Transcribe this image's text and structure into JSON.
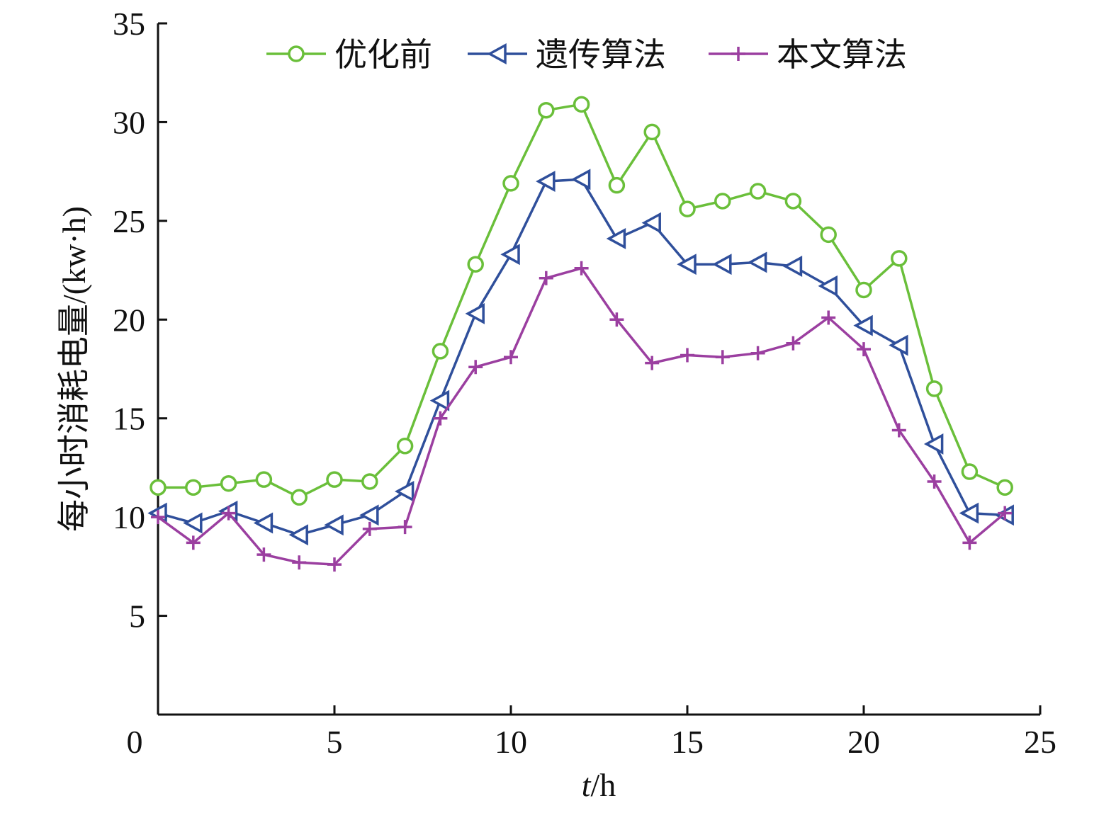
{
  "chart_data": {
    "type": "line",
    "title": "",
    "xlabel": "t/h",
    "xlabel_parts": {
      "var": "t",
      "unit": "/h"
    },
    "ylabel": "每小时消耗电量/(kw·h)",
    "xlim": [
      0,
      25
    ],
    "ylim": [
      0,
      35
    ],
    "xticks": [
      0,
      5,
      10,
      15,
      20,
      25
    ],
    "xtick_labels": [
      "0",
      "5",
      "10",
      "15",
      "20",
      "25"
    ],
    "yticks": [
      5,
      10,
      15,
      20,
      25,
      30,
      35
    ],
    "ytick_labels": [
      "5",
      "10",
      "15",
      "20",
      "25",
      "30",
      "35"
    ],
    "grid": false,
    "legend_position": "top-center",
    "x": [
      0,
      1,
      2,
      3,
      4,
      5,
      6,
      7,
      8,
      9,
      10,
      11,
      12,
      13,
      14,
      15,
      16,
      17,
      18,
      19,
      20,
      21,
      22,
      23,
      24
    ],
    "series": [
      {
        "name": "优化前",
        "color": "#6abf3a",
        "marker": "circle",
        "values": [
          11.5,
          11.5,
          11.7,
          11.9,
          11.0,
          11.9,
          11.8,
          13.6,
          18.4,
          22.8,
          26.9,
          30.6,
          30.9,
          26.8,
          29.5,
          25.6,
          26.0,
          26.5,
          26.0,
          24.3,
          21.5,
          23.1,
          16.5,
          12.3,
          11.5
        ]
      },
      {
        "name": "遗传算法",
        "color": "#2f4f9b",
        "marker": "triangle-left",
        "values": [
          10.2,
          9.7,
          10.3,
          9.7,
          9.1,
          9.6,
          10.1,
          11.3,
          15.9,
          20.3,
          23.3,
          27.0,
          27.1,
          24.1,
          24.9,
          22.8,
          22.8,
          22.9,
          22.7,
          21.7,
          19.7,
          18.7,
          13.7,
          10.2,
          10.1
        ]
      },
      {
        "name": "本文算法",
        "color": "#9b3fa0",
        "marker": "plus",
        "values": [
          10.0,
          8.7,
          10.2,
          8.1,
          7.7,
          7.6,
          9.4,
          9.5,
          15.0,
          17.6,
          18.1,
          22.1,
          22.6,
          20.0,
          17.8,
          18.2,
          18.1,
          18.3,
          18.8,
          20.1,
          18.5,
          14.4,
          11.8,
          8.7,
          10.2
        ]
      }
    ]
  }
}
